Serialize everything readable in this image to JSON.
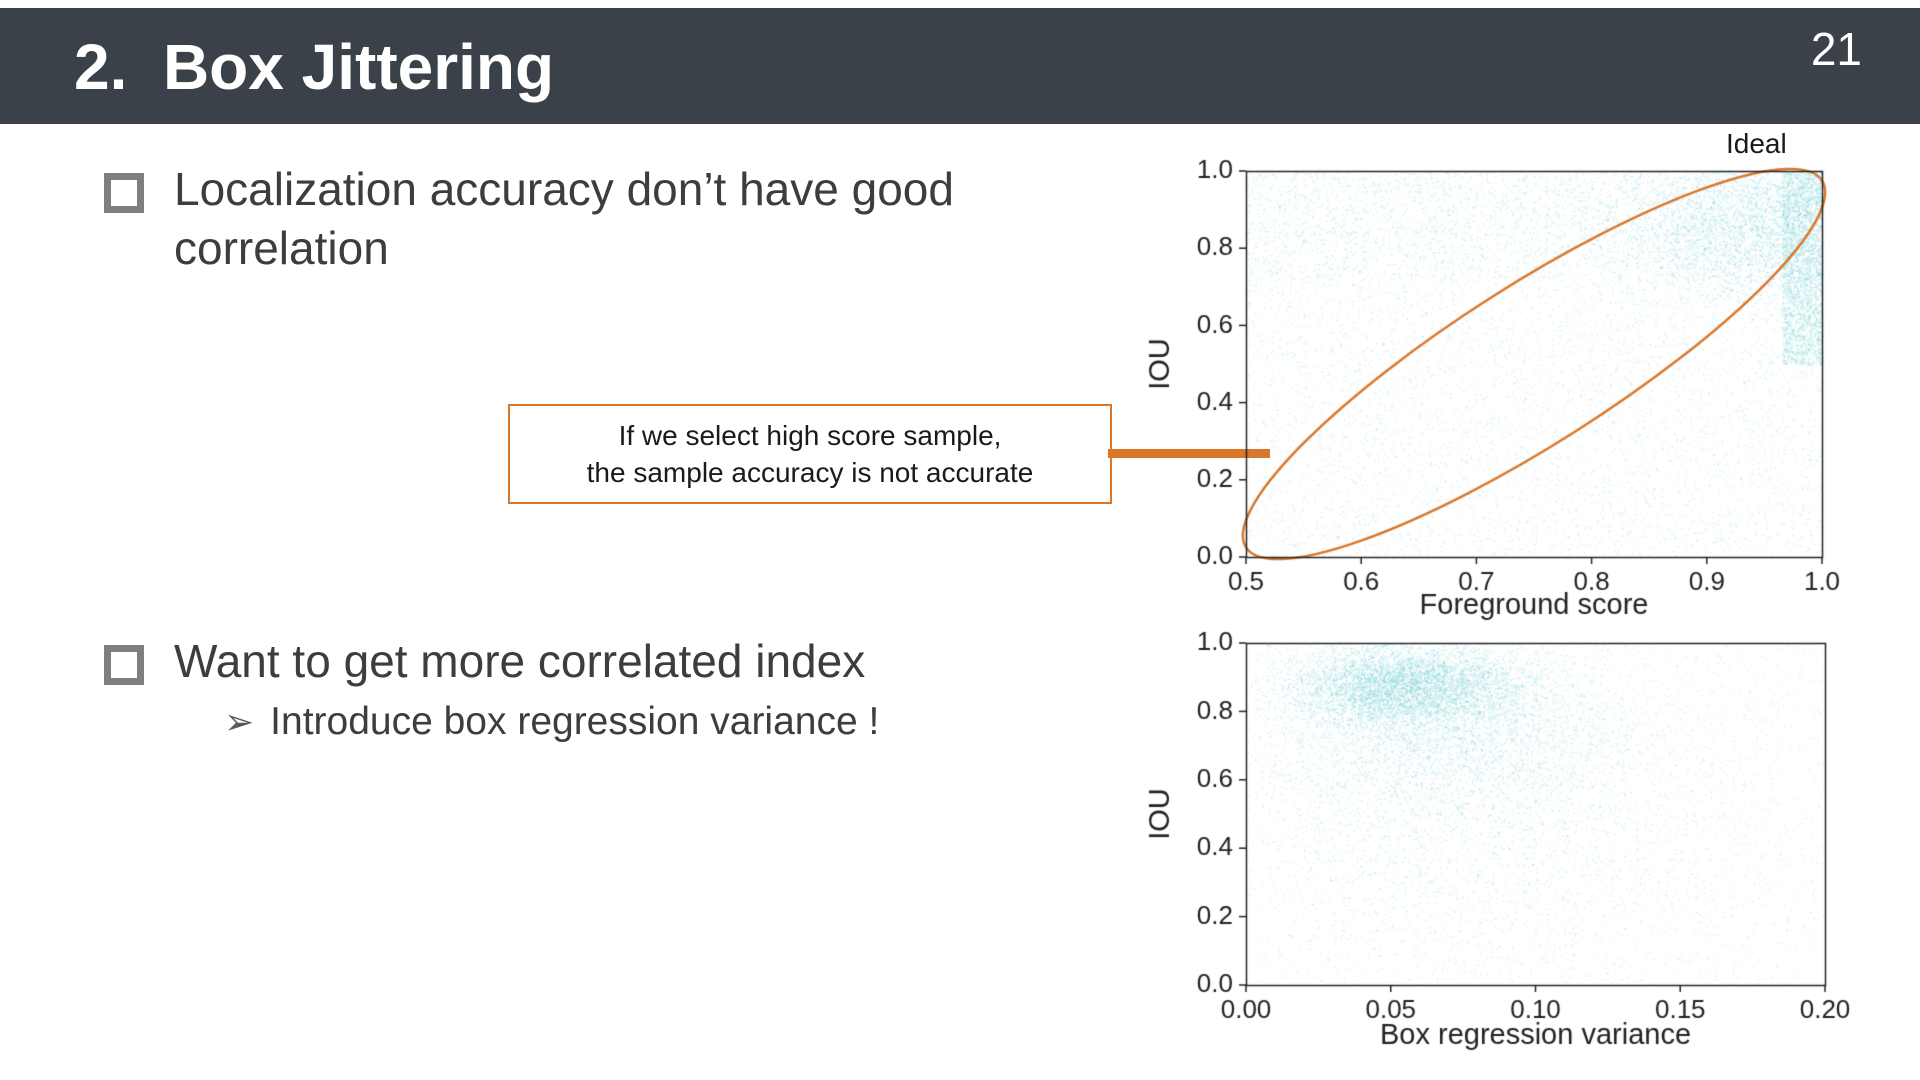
{
  "header": {
    "title": "2.  Box Jittering",
    "page_number": "21"
  },
  "content": {
    "bullet1": "Localization accuracy don’t have good correlation",
    "bullet2": "Want to get more correlated index",
    "sub_bullet_arrow": "➢",
    "sub_bullet": "Introduce box regression variance !",
    "callout": {
      "line1": "If we select high score sample,",
      "line2": "the sample accuracy is not accurate"
    },
    "ideal_label": "Ideal"
  },
  "colors": {
    "header_bg": "#3a4149",
    "accent_orange": "#d9772b",
    "scatter_teal": "#5bc4c8",
    "text_dark": "#3d3d3d"
  },
  "chart_data": [
    {
      "type": "scatter",
      "title": "",
      "xlabel": "Foreground score",
      "ylabel": "IOU",
      "xlim": [
        0.5,
        1.0
      ],
      "ylim": [
        0.0,
        1.0
      ],
      "xticks": [
        0.5,
        0.6,
        0.7,
        0.8,
        0.9,
        1.0
      ],
      "xtick_labels": [
        "0.5",
        "0.6",
        "0.7",
        "0.8",
        "0.9",
        "1.0"
      ],
      "yticks": [
        0.0,
        0.2,
        0.4,
        0.6,
        0.8,
        1.0
      ],
      "ytick_labels": [
        "0.0",
        "0.2",
        "0.4",
        "0.6",
        "0.8",
        "1.0"
      ],
      "grid": false,
      "point_color": "#5bc4c8",
      "point_alpha": 0.17,
      "seed": 42,
      "clusters": [
        {
          "kind": "uniform",
          "n": 5200,
          "x": [
            0.5,
            1.0
          ],
          "y": [
            0.0,
            1.0
          ]
        },
        {
          "kind": "uniform",
          "n": 1800,
          "x": [
            0.5,
            1.0
          ],
          "y": [
            0.72,
            1.0
          ]
        },
        {
          "kind": "gauss",
          "n": 3200,
          "cx": 0.93,
          "cy": 0.86,
          "sx": 0.055,
          "sy": 0.1
        },
        {
          "kind": "uniform",
          "n": 2600,
          "x": [
            0.965,
            1.0
          ],
          "y": [
            0.5,
            1.0
          ]
        }
      ],
      "annotation": {
        "label": "Ideal",
        "shape": "ellipse",
        "color": "#d9772b"
      }
    },
    {
      "type": "scatter",
      "title": "",
      "xlabel": "Box regression variance",
      "ylabel": "IOU",
      "xlim": [
        0.0,
        0.2
      ],
      "ylim": [
        0.0,
        1.0
      ],
      "xticks": [
        0.0,
        0.05,
        0.1,
        0.15,
        0.2
      ],
      "xtick_labels": [
        "0.00",
        "0.05",
        "0.10",
        "0.15",
        "0.20"
      ],
      "yticks": [
        0.0,
        0.2,
        0.4,
        0.6,
        0.8,
        1.0
      ],
      "ytick_labels": [
        "0.0",
        "0.2",
        "0.4",
        "0.6",
        "0.8",
        "1.0"
      ],
      "grid": false,
      "point_color": "#5bc4c8",
      "point_alpha": 0.17,
      "seed": 7,
      "clusters": [
        {
          "kind": "gauss",
          "n": 5200,
          "cx": 0.055,
          "cy": 0.88,
          "sx": 0.02,
          "sy": 0.06
        },
        {
          "kind": "gauss",
          "n": 3200,
          "cx": 0.07,
          "cy": 0.74,
          "sx": 0.032,
          "sy": 0.12
        },
        {
          "kind": "gauss",
          "n": 2600,
          "cx": 0.08,
          "cy": 0.5,
          "sx": 0.05,
          "sy": 0.26
        },
        {
          "kind": "uniform",
          "n": 1400,
          "x": [
            0.005,
            0.2
          ],
          "y": [
            0.0,
            1.0
          ]
        }
      ]
    }
  ]
}
